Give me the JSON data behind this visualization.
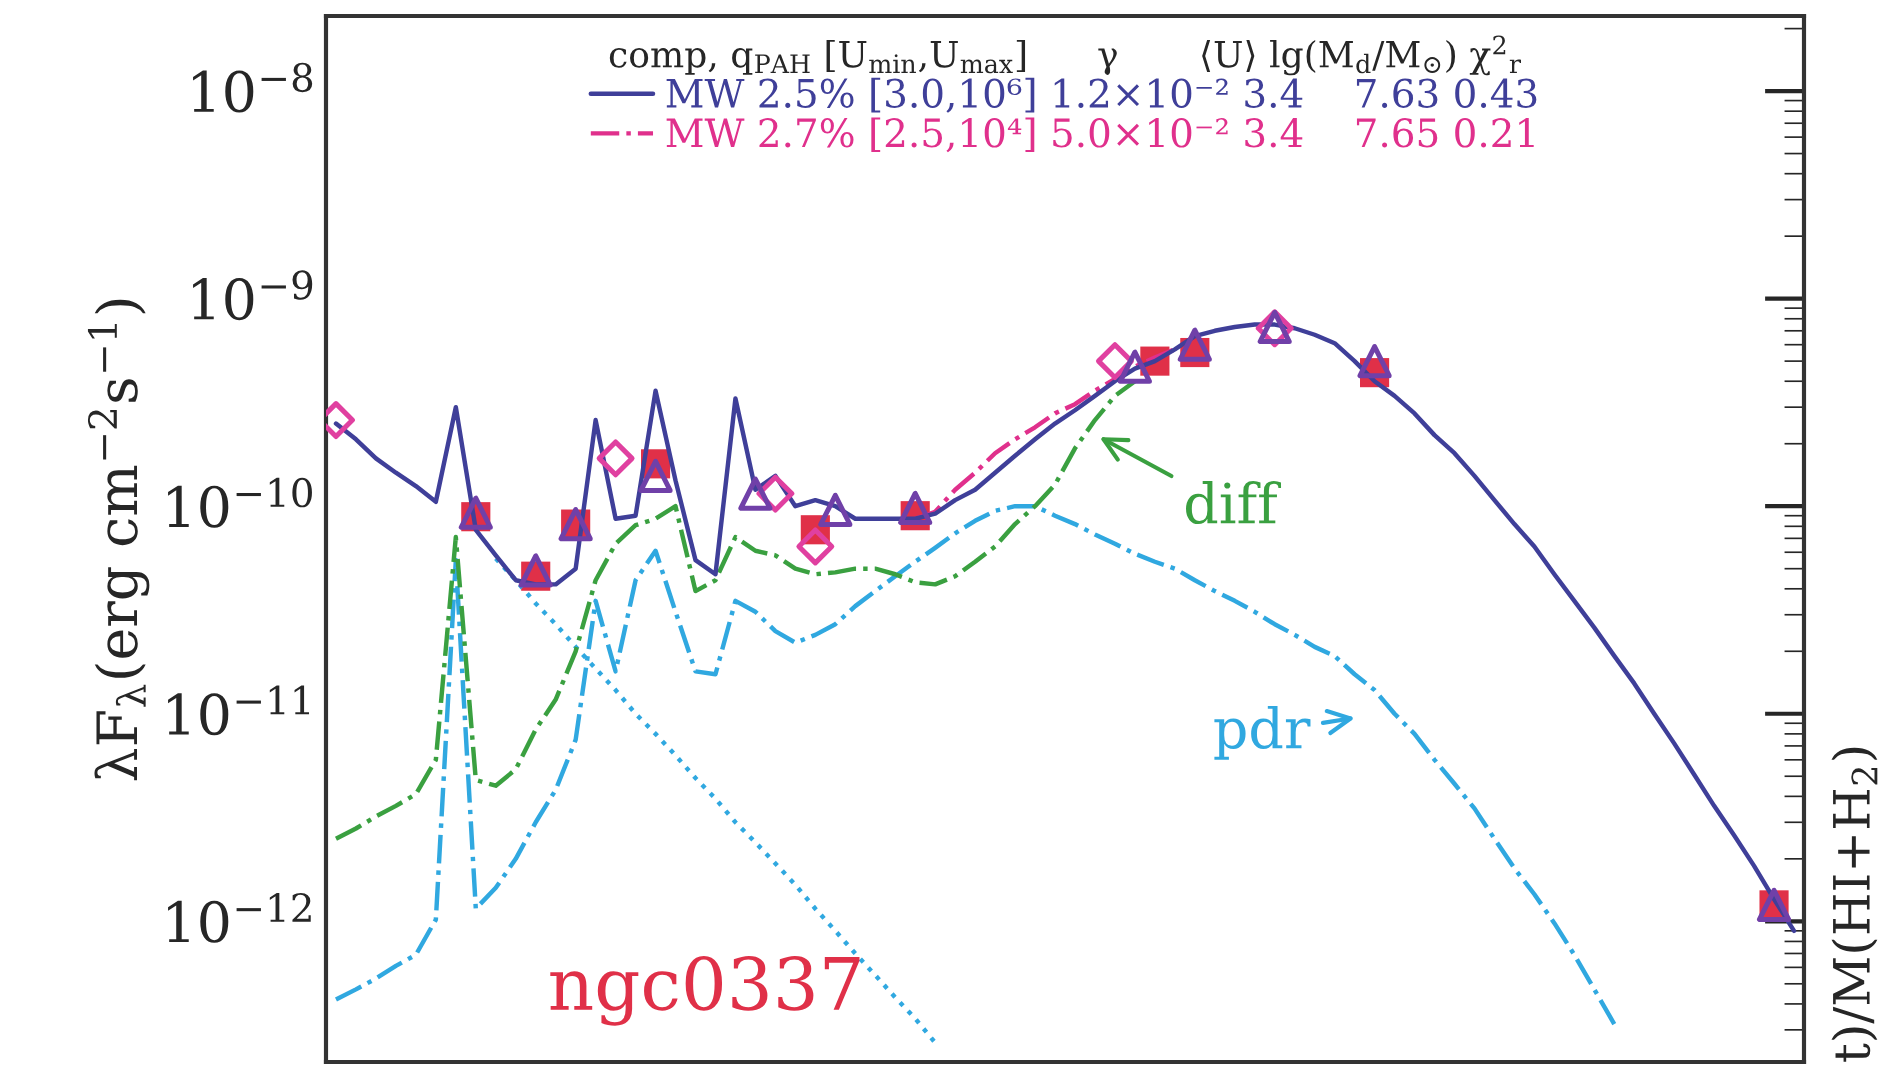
{
  "chart_data": {
    "type": "line",
    "ylabel": "λF$_{λ}$(erg cm$^{−2}$s$^{−1}$)",
    "legend_title": "comp, q$_{PAH}$ [U$_{min}$,U$_{max}$]      γ       ⟨U⟩ lg(M$_{d}$/M$_{⊙}$) χ$^{2}$$_{r}$",
    "legend": "top",
    "log": "y",
    "tick_labels": "y",
    "ylim": [
      2.1e-13,
      2.3e-08
    ],
    "yticks": [
      {
        "value": 1e-12,
        "label": "10$^{−12}$"
      },
      {
        "value": 1e-11,
        "label": "10$^{−11}$"
      },
      {
        "value": 1e-10,
        "label": "10$^{−10}$"
      },
      {
        "value": 1e-09,
        "label": "10$^{−9}$"
      },
      {
        "value": 1e-08,
        "label": "10$^{−8}$"
      }
    ],
    "categories": [
      null,
      null,
      null,
      null,
      null,
      null,
      null,
      null,
      null,
      null,
      null,
      null,
      null,
      null,
      null,
      null,
      null,
      null,
      null,
      null,
      null,
      null,
      null,
      null,
      null,
      null,
      null,
      null,
      null,
      null,
      null,
      null,
      null,
      null,
      null,
      null,
      null,
      null,
      null,
      null,
      null,
      null,
      null,
      null,
      null,
      null,
      null,
      null,
      null,
      null,
      null,
      null,
      null,
      null,
      null,
      null,
      null,
      null,
      null,
      null,
      null,
      null,
      null,
      null,
      null,
      null,
      null,
      null,
      null,
      null,
      null,
      null,
      null,
      null
    ],
    "annotations": [
      "diff",
      "pdr",
      "ngc0337",
      "t)/M(HI+H$_{2}$)"
    ],
    "series": [
      {
        "name": "MW 2.5% [3.0,10⁶] 1.2×10⁻² 3.4    7.63 0.43",
        "line_style": "solid",
        "color": "#3f3f99",
        "values": [
          2.5e-10,
          2.1e-10,
          1.7e-10,
          1.45e-10,
          1.25e-10,
          1.05e-10,
          3e-10,
          7.7e-11,
          5.8e-11,
          4.4e-11,
          4.2e-11,
          4.2e-11,
          5e-11,
          2.6e-10,
          8.7e-11,
          9e-11,
          3.6e-10,
          1.33e-10,
          5.5e-11,
          4.7e-11,
          3.3e-10,
          1.2e-10,
          1.4e-10,
          1e-10,
          1.07e-10,
          1e-10,
          8.7e-11,
          8.7e-11,
          8.7e-11,
          8.7e-11,
          9.2e-11,
          1.07e-10,
          1.2e-10,
          1.45e-10,
          1.75e-10,
          2.1e-10,
          2.5e-10,
          2.9e-10,
          3.4e-10,
          4e-10,
          4.6e-10,
          5e-10,
          5.7e-10,
          6.6e-10,
          7e-10,
          7.3e-10,
          7.5e-10,
          7.5e-10,
          7.2e-10,
          6.7e-10,
          6.1e-10,
          5e-10,
          4e-10,
          3.4e-10,
          2.8e-10,
          2.2e-10,
          1.8e-10,
          1.4e-10,
          1.07e-10,
          8.2e-11,
          6.4e-11,
          4.7e-11,
          3.5e-11,
          2.6e-11,
          1.9e-11,
          1.4e-11,
          1e-11,
          7.2e-12,
          5.1e-12,
          3.6e-12,
          2.6e-12,
          1.85e-12,
          1.28e-12,
          9e-13
        ]
      },
      {
        "name": "MW 2.7% [2.5,10⁴] 5.0×10⁻² 3.4    7.65 0.21",
        "line_style": "dashdot",
        "color": "#e0308c",
        "values": [
          null,
          null,
          null,
          null,
          null,
          null,
          null,
          null,
          null,
          null,
          null,
          null,
          null,
          null,
          null,
          null,
          null,
          null,
          null,
          null,
          null,
          null,
          null,
          null,
          null,
          null,
          null,
          null,
          null,
          8.7e-11,
          9.4e-11,
          1.2e-10,
          1.45e-10,
          1.8e-10,
          2.1e-10,
          2.4e-10,
          2.8e-10,
          3.1e-10,
          3.6e-10,
          4.1e-10,
          4.7e-10,
          5.2e-10,
          5.7e-10,
          null,
          null,
          null,
          null,
          null,
          null,
          null,
          null,
          null,
          null,
          null,
          null,
          null,
          null,
          null,
          null,
          null,
          null,
          null,
          null,
          null,
          null,
          null,
          null,
          null,
          null,
          null,
          null,
          null,
          null,
          null
        ]
      },
      {
        "line_style": "dashdot",
        "color": "#3aa040",
        "values": [
          2.5e-12,
          2.8e-12,
          3.2e-12,
          3.6e-12,
          4.1e-12,
          6e-12,
          7.1e-11,
          4.8e-12,
          4.5e-12,
          5.4e-12,
          8.4e-12,
          1.17e-11,
          2e-11,
          4.4e-11,
          6.6e-11,
          8.1e-11,
          8.7e-11,
          1e-10,
          3.9e-11,
          4.4e-11,
          7.1e-11,
          6.1e-11,
          5.8e-11,
          5e-11,
          4.7e-11,
          4.8e-11,
          5e-11,
          5e-11,
          4.7e-11,
          4.3e-11,
          4.2e-11,
          4.6e-11,
          5.4e-11,
          6.4e-11,
          8.2e-11,
          1e-10,
          1.27e-10,
          1.9e-10,
          2.6e-10,
          3.4e-10,
          4e-10,
          null,
          null,
          null,
          null,
          null,
          null,
          null,
          null,
          null,
          null,
          null,
          null,
          null,
          null,
          null,
          null,
          null,
          null,
          null,
          null,
          null,
          null,
          null,
          null,
          null,
          null,
          null,
          null,
          null,
          null,
          null,
          null,
          null
        ]
      },
      {
        "line_style": "dashdot",
        "color": "#30a8e0",
        "values": [
          4.2e-13,
          4.7e-13,
          5.3e-13,
          6.1e-13,
          6.9e-13,
          1.02e-12,
          5.5e-11,
          1.15e-12,
          1.45e-12,
          2e-12,
          3e-12,
          4.3e-12,
          7.5e-12,
          3.5e-11,
          1.6e-11,
          4.4e-11,
          6.1e-11,
          3.1e-11,
          1.6e-11,
          1.55e-11,
          3.5e-11,
          3.1e-11,
          2.5e-11,
          2.2e-11,
          2.4e-11,
          2.7e-11,
          3.3e-11,
          3.9e-11,
          4.6e-11,
          5.4e-11,
          6.3e-11,
          7.4e-11,
          8.5e-11,
          9.5e-11,
          1e-10,
          1e-10,
          9e-11,
          8.2e-11,
          7.3e-11,
          6.6e-11,
          5.9e-11,
          5.4e-11,
          5e-11,
          4.4e-11,
          3.9e-11,
          3.5e-11,
          3.1e-11,
          2.7e-11,
          2.4e-11,
          2.1e-11,
          1.9e-11,
          1.55e-11,
          1.3e-11,
          1e-11,
          8e-12,
          6e-12,
          4.6e-12,
          3.5e-12,
          2.5e-12,
          1.8e-12,
          1.35e-12,
          9.8e-13,
          6.9e-13,
          4.7e-13,
          3.2e-13,
          null,
          null,
          null,
          null,
          null,
          null,
          null,
          null,
          null
        ]
      },
      {
        "line_style": "dotted",
        "color": "#30a8e0",
        "values": [
          null,
          null,
          null,
          null,
          null,
          null,
          null,
          null,
          5.6e-11,
          4.4e-11,
          3.4e-11,
          2.7e-11,
          2.1e-11,
          1.65e-11,
          1.3e-11,
          1e-11,
          8e-12,
          6.3e-12,
          4.9e-12,
          3.9e-12,
          3e-12,
          2.4e-12,
          1.9e-12,
          1.5e-12,
          1.15e-12,
          9e-13,
          7e-13,
          5.5e-13,
          4.3e-13,
          3.4e-13,
          2.6e-13,
          null,
          null,
          null,
          null,
          null,
          null,
          null,
          null,
          null,
          null,
          null,
          null,
          null,
          null,
          null,
          null,
          null,
          null,
          null,
          null,
          null,
          null,
          null,
          null,
          null,
          null,
          null,
          null,
          null,
          null,
          null,
          null,
          null,
          null,
          null,
          null,
          null,
          null,
          null,
          null,
          null,
          null,
          null
        ]
      },
      {
        "type": "scatter",
        "marker": "square",
        "color": "#e03048",
        "values": [
          null,
          null,
          null,
          null,
          null,
          null,
          null,
          8.9e-11,
          null,
          null,
          4.6e-11,
          null,
          8.2e-11,
          null,
          null,
          null,
          1.6e-10,
          null,
          null,
          null,
          null,
          null,
          null,
          null,
          7.7e-11,
          null,
          null,
          null,
          null,
          9e-11,
          null,
          null,
          null,
          null,
          null,
          null,
          null,
          null,
          null,
          null,
          null,
          5e-10,
          null,
          5.5e-10,
          null,
          null,
          null,
          null,
          null,
          null,
          null,
          null,
          4.4e-10,
          null,
          null,
          null,
          null,
          null,
          null,
          null,
          null,
          null,
          null,
          null,
          null,
          null,
          null,
          null,
          null,
          null,
          null,
          null,
          1.2e-12,
          null
        ]
      },
      {
        "type": "scatter",
        "marker": "diamond",
        "color": "#e040a0",
        "values": [
          2.6e-10,
          null,
          null,
          null,
          null,
          null,
          null,
          null,
          null,
          null,
          null,
          null,
          null,
          null,
          1.7e-10,
          null,
          null,
          null,
          null,
          null,
          null,
          null,
          1.15e-10,
          null,
          6.4e-11,
          null,
          null,
          null,
          null,
          null,
          null,
          null,
          null,
          null,
          null,
          null,
          null,
          null,
          null,
          5e-10,
          null,
          null,
          null,
          null,
          null,
          null,
          null,
          7.2e-10,
          null,
          null,
          null,
          null,
          null,
          null,
          null,
          null,
          null,
          null,
          null,
          null,
          null,
          null,
          null,
          null,
          null,
          null,
          null,
          null,
          null,
          null,
          null,
          null,
          null,
          null
        ]
      },
      {
        "type": "scatter",
        "marker": "triangle",
        "color": "#7040a8",
        "values": [
          null,
          null,
          null,
          null,
          null,
          null,
          null,
          9.3e-11,
          null,
          null,
          4.9e-11,
          null,
          8.2e-11,
          null,
          null,
          null,
          1.4e-10,
          null,
          null,
          null,
          null,
          1.15e-10,
          null,
          null,
          null,
          9.6e-11,
          null,
          null,
          null,
          9.8e-11,
          null,
          null,
          null,
          null,
          null,
          null,
          null,
          null,
          null,
          null,
          4.7e-10,
          null,
          null,
          6e-10,
          null,
          null,
          null,
          7.3e-10,
          null,
          null,
          null,
          null,
          5e-10,
          null,
          null,
          null,
          null,
          null,
          null,
          null,
          null,
          null,
          null,
          null,
          null,
          null,
          null,
          null,
          null,
          null,
          null,
          null,
          1.2e-12,
          null
        ]
      }
    ]
  }
}
